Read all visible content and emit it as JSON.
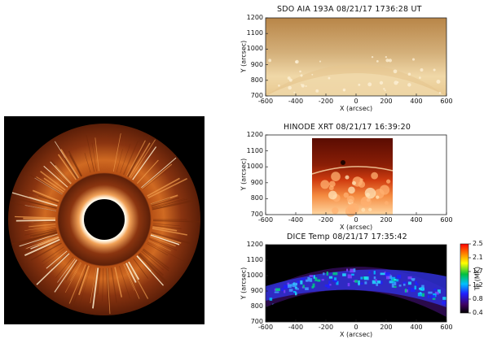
{
  "panels": [
    {
      "id": "sdo",
      "title": "SDO AIA 193A 08/21/17 1736:28 UT",
      "xlabel": "X (arcsec)",
      "ylabel": "Y (arcsec)",
      "xticks": [
        "-600",
        "-400",
        "-200",
        "0",
        "200",
        "400",
        "600"
      ],
      "yticks": [
        "700",
        "800",
        "900",
        "1000",
        "1100",
        "1200"
      ]
    },
    {
      "id": "xrt",
      "title": "HINODE XRT 08/21/17 16:39:20",
      "xlabel": "X (arcsec)",
      "ylabel": "Y (arcsec)",
      "xticks": [
        "-600",
        "-400",
        "-200",
        "0",
        "200",
        "400",
        "600"
      ],
      "yticks": [
        "700",
        "800",
        "900",
        "1000",
        "1100",
        "1200"
      ]
    },
    {
      "id": "dice",
      "title": "DICE Temp 08/21/17 17:35:42",
      "xlabel": "X (arcsec)",
      "ylabel": "Y (arcsec)",
      "xticks": [
        "-600",
        "-400",
        "-200",
        "0",
        "200",
        "400",
        "600"
      ],
      "yticks": [
        "700",
        "800",
        "900",
        "1000",
        "1100",
        "1200"
      ],
      "colorbar": {
        "label": "Te (MK)",
        "ticks": [
          "2.5",
          "2.1",
          "1.7",
          "1.2",
          "0.8",
          "0.4"
        ]
      }
    }
  ],
  "colors": {
    "corona_bright": "#ffd9a0",
    "corona_mid": "#c0561a",
    "corona_dark": "#2a0c04",
    "aia_tone": "#c8a060",
    "xrt_tone": "#e85020"
  }
}
